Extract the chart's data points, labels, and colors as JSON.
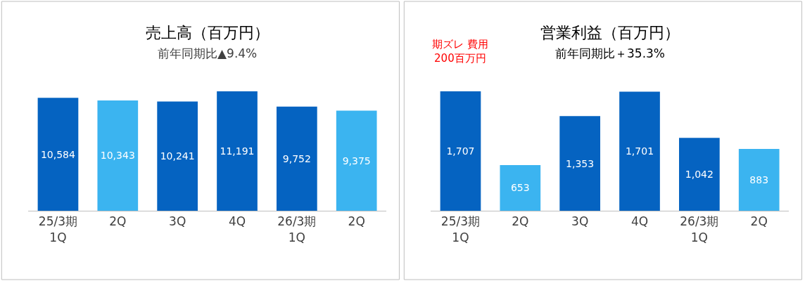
{
  "chart_data": [
    {
      "type": "bar",
      "title": "売上高（百万円）",
      "subtitle": "前年同期比▲9.4%",
      "categories": [
        "25/3期\n1Q",
        "2Q",
        "3Q",
        "4Q",
        "26/3期\n1Q",
        "2Q"
      ],
      "values": [
        10584,
        10343,
        10241,
        11191,
        9752,
        9375
      ],
      "value_labels": [
        "10,584",
        "10,343",
        "10,241",
        "11,191",
        "9,752",
        "9,375"
      ],
      "colors": [
        "#0563c1",
        "#3bb4f0",
        "#0563c1",
        "#0563c1",
        "#0563c1",
        "#3bb4f0"
      ],
      "tick_labels": "x"
    },
    {
      "type": "bar",
      "title": "営業利益（百万円）",
      "subtitle": "前年同期比＋35.3%",
      "categories": [
        "25/3期\n1Q",
        "2Q",
        "3Q",
        "4Q",
        "26/3期\n1Q",
        "2Q"
      ],
      "values": [
        1707,
        653,
        1353,
        1701,
        1042,
        883
      ],
      "value_labels": [
        "1,707",
        "653",
        "1,353",
        "1,701",
        "1,042",
        "883"
      ],
      "colors": [
        "#0563c1",
        "#3bb4f0",
        "#0563c1",
        "#0563c1",
        "#0563c1",
        "#3bb4f0"
      ],
      "tick_labels": "x",
      "annotations": [
        "期ズレ 費用\n200百万円"
      ]
    }
  ]
}
